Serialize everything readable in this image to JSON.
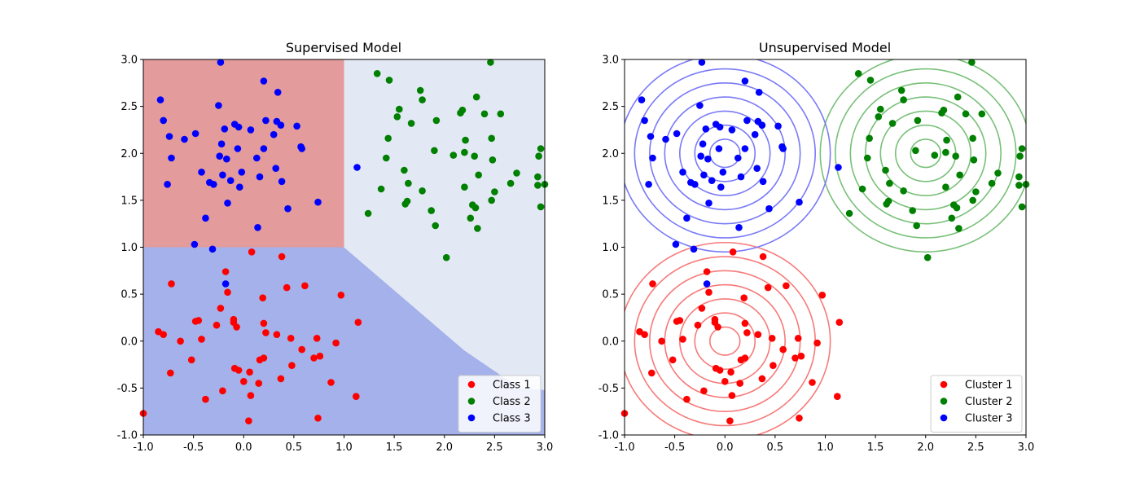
{
  "colors": {
    "red": "#ff0000",
    "green": "#008000",
    "blue": "#0000ff",
    "region_red": "#e39b9b",
    "region_blue": "#a4b1ea",
    "region_lightblue": "#e3e9f4",
    "contour_red": "#f77a7a",
    "contour_green": "#78c078",
    "contour_blue": "#7a7af7"
  },
  "chart_data": [
    {
      "type": "scatter",
      "title": "Supervised Model",
      "xlim": [
        -1.0,
        3.0
      ],
      "ylim": [
        -1.0,
        3.0
      ],
      "xticks": [
        "-1.0",
        "-0.5",
        "0.0",
        "0.5",
        "1.0",
        "1.5",
        "2.0",
        "2.5",
        "3.0"
      ],
      "yticks": [
        "-1.0",
        "-0.5",
        "0.0",
        "0.5",
        "1.0",
        "1.5",
        "2.0",
        "2.5",
        "3.0"
      ],
      "legend_position": "lower-right",
      "background": "decision-regions",
      "regions": [
        {
          "class": "Class 1",
          "color": "region_red",
          "polygon": [
            [
              -1.0,
              1.0
            ],
            [
              1.0,
              1.0
            ],
            [
              1.0,
              3.0
            ],
            [
              -1.0,
              3.0
            ]
          ]
        },
        {
          "class": "Class 3",
          "color": "region_blue",
          "polygon": [
            [
              -1.0,
              -1.0
            ],
            [
              3.0,
              -1.0
            ],
            [
              3.0,
              -0.52
            ],
            [
              2.75,
              -0.5
            ],
            [
              2.2,
              -0.1
            ],
            [
              1.0,
              1.0
            ],
            [
              -1.0,
              1.0
            ]
          ]
        },
        {
          "class": "Class 2",
          "color": "region_lightblue",
          "polygon": [
            [
              1.0,
              1.0
            ],
            [
              2.2,
              -0.1
            ],
            [
              2.75,
              -0.5
            ],
            [
              3.0,
              -0.52
            ],
            [
              3.0,
              3.0
            ],
            [
              1.0,
              3.0
            ]
          ]
        }
      ],
      "series": [
        {
          "name": "Class 1",
          "color": "red",
          "points": [
            [
              -1.0,
              -0.77
            ],
            [
              -0.85,
              0.1
            ],
            [
              -0.8,
              0.07
            ],
            [
              -0.73,
              -0.34
            ],
            [
              -0.72,
              0.61
            ],
            [
              -0.63,
              0.0
            ],
            [
              -0.52,
              -0.2
            ],
            [
              -0.48,
              0.21
            ],
            [
              -0.45,
              0.22
            ],
            [
              -0.42,
              0.02
            ],
            [
              -0.38,
              -0.62
            ],
            [
              -0.27,
              0.17
            ],
            [
              -0.23,
              0.35
            ],
            [
              -0.21,
              -0.53
            ],
            [
              -0.18,
              0.74
            ],
            [
              -0.16,
              0.52
            ],
            [
              -0.1,
              0.23
            ],
            [
              -0.1,
              0.2
            ],
            [
              -0.09,
              -0.29
            ],
            [
              -0.07,
              0.15
            ],
            [
              -0.05,
              -0.31
            ],
            [
              0.0,
              -0.43
            ],
            [
              0.05,
              -0.85
            ],
            [
              0.06,
              -0.33
            ],
            [
              0.07,
              -0.58
            ],
            [
              0.08,
              0.95
            ],
            [
              0.15,
              -0.45
            ],
            [
              0.16,
              -0.2
            ],
            [
              0.19,
              0.46
            ],
            [
              0.2,
              -0.18
            ],
            [
              0.2,
              0.19
            ],
            [
              0.22,
              0.09
            ],
            [
              0.33,
              0.07
            ],
            [
              0.37,
              -0.4
            ],
            [
              0.38,
              0.9
            ],
            [
              0.43,
              0.57
            ],
            [
              0.47,
              0.03
            ],
            [
              0.48,
              -0.26
            ],
            [
              0.58,
              -0.09
            ],
            [
              0.61,
              0.59
            ],
            [
              0.7,
              -0.18
            ],
            [
              0.73,
              0.03
            ],
            [
              0.74,
              -0.82
            ],
            [
              0.76,
              -0.16
            ],
            [
              0.87,
              -0.44
            ],
            [
              0.92,
              -0.02
            ],
            [
              0.97,
              0.49
            ],
            [
              1.12,
              -0.59
            ],
            [
              1.14,
              0.2
            ]
          ]
        },
        {
          "name": "Class 2",
          "color": "green",
          "points": [
            [
              1.24,
              1.36
            ],
            [
              1.33,
              2.85
            ],
            [
              1.37,
              1.62
            ],
            [
              1.42,
              1.95
            ],
            [
              1.44,
              2.16
            ],
            [
              1.45,
              2.78
            ],
            [
              1.53,
              2.39
            ],
            [
              1.55,
              2.47
            ],
            [
              1.6,
              1.82
            ],
            [
              1.61,
              1.46
            ],
            [
              1.63,
              1.49
            ],
            [
              1.64,
              1.68
            ],
            [
              1.67,
              2.32
            ],
            [
              1.76,
              2.67
            ],
            [
              1.78,
              2.57
            ],
            [
              1.78,
              1.6
            ],
            [
              1.87,
              1.39
            ],
            [
              1.9,
              2.03
            ],
            [
              1.91,
              1.23
            ],
            [
              1.92,
              2.35
            ],
            [
              2.02,
              0.89
            ],
            [
              2.09,
              1.98
            ],
            [
              2.16,
              2.43
            ],
            [
              2.18,
              2.46
            ],
            [
              2.2,
              2.01
            ],
            [
              2.2,
              1.64
            ],
            [
              2.21,
              2.14
            ],
            [
              2.26,
              1.31
            ],
            [
              2.28,
              1.45
            ],
            [
              2.3,
              1.97
            ],
            [
              2.31,
              1.42
            ],
            [
              2.32,
              2.6
            ],
            [
              2.33,
              1.2
            ],
            [
              2.34,
              1.77
            ],
            [
              2.4,
              2.42
            ],
            [
              2.46,
              2.97
            ],
            [
              2.47,
              1.5
            ],
            [
              2.47,
              2.16
            ],
            [
              2.48,
              1.93
            ],
            [
              2.5,
              1.59
            ],
            [
              2.56,
              2.42
            ],
            [
              2.66,
              1.68
            ],
            [
              2.72,
              1.79
            ],
            [
              2.93,
              1.75
            ],
            [
              2.93,
              1.66
            ],
            [
              2.94,
              1.97
            ],
            [
              2.96,
              2.05
            ],
            [
              2.96,
              1.43
            ],
            [
              3.0,
              1.67
            ]
          ]
        },
        {
          "name": "Class 3",
          "color": "blue",
          "points": [
            [
              -0.83,
              2.57
            ],
            [
              -0.8,
              2.35
            ],
            [
              -0.76,
              1.67
            ],
            [
              -0.74,
              2.18
            ],
            [
              -0.72,
              1.95
            ],
            [
              -0.59,
              2.15
            ],
            [
              -0.49,
              1.03
            ],
            [
              -0.48,
              2.21
            ],
            [
              -0.42,
              1.8
            ],
            [
              -0.38,
              1.31
            ],
            [
              -0.34,
              1.69
            ],
            [
              -0.31,
              0.98
            ],
            [
              -0.3,
              1.67
            ],
            [
              -0.25,
              2.51
            ],
            [
              -0.24,
              1.97
            ],
            [
              -0.23,
              2.97
            ],
            [
              -0.22,
              2.1
            ],
            [
              -0.21,
              1.77
            ],
            [
              -0.19,
              2.26
            ],
            [
              -0.18,
              0.61
            ],
            [
              -0.17,
              1.94
            ],
            [
              -0.16,
              1.47
            ],
            [
              -0.13,
              1.71
            ],
            [
              -0.09,
              2.31
            ],
            [
              -0.06,
              2.05
            ],
            [
              -0.05,
              2.28
            ],
            [
              -0.04,
              1.64
            ],
            [
              -0.02,
              1.8
            ],
            [
              0.07,
              2.25
            ],
            [
              0.13,
              1.95
            ],
            [
              0.14,
              1.21
            ],
            [
              0.16,
              1.75
            ],
            [
              0.2,
              2.05
            ],
            [
              0.2,
              2.77
            ],
            [
              0.22,
              2.35
            ],
            [
              0.3,
              2.2
            ],
            [
              0.32,
              1.84
            ],
            [
              0.33,
              2.34
            ],
            [
              0.34,
              2.65
            ],
            [
              0.37,
              2.3
            ],
            [
              0.38,
              1.7
            ],
            [
              0.44,
              1.41
            ],
            [
              0.53,
              2.29
            ],
            [
              0.57,
              2.07
            ],
            [
              0.58,
              2.05
            ],
            [
              0.74,
              1.48
            ],
            [
              1.13,
              1.85
            ]
          ]
        }
      ]
    },
    {
      "type": "scatter",
      "title": "Unsupervised Model",
      "xlim": [
        -1.0,
        3.0
      ],
      "ylim": [
        -1.0,
        3.0
      ],
      "xticks": [
        "-1.0",
        "-0.5",
        "0.0",
        "0.5",
        "1.0",
        "1.5",
        "2.0",
        "2.5",
        "3.0"
      ],
      "yticks": [
        "-1.0",
        "-0.5",
        "0.0",
        "0.5",
        "1.0",
        "1.5",
        "2.0",
        "2.5",
        "3.0"
      ],
      "legend_position": "lower-right",
      "background": "gaussian-contours",
      "contours": [
        {
          "cluster": "Cluster 1",
          "color": "contour_red",
          "center": [
            0.0,
            0.0
          ],
          "radii": [
            0.15,
            0.3,
            0.45,
            0.6,
            0.75,
            0.9,
            1.05
          ]
        },
        {
          "cluster": "Cluster 2",
          "color": "contour_green",
          "center": [
            2.0,
            2.0
          ],
          "radii": [
            0.15,
            0.3,
            0.45,
            0.6,
            0.75,
            0.9,
            1.05
          ]
        },
        {
          "cluster": "Cluster 3",
          "color": "contour_blue",
          "center": [
            0.0,
            2.0
          ],
          "radii": [
            0.15,
            0.3,
            0.45,
            0.6,
            0.75,
            0.9,
            1.05
          ]
        }
      ],
      "series": [
        {
          "name": "Cluster 1",
          "color": "red",
          "same_points_as": 0
        },
        {
          "name": "Cluster 2",
          "color": "green",
          "same_points_as": 1
        },
        {
          "name": "Cluster 3",
          "color": "blue",
          "same_points_as": 2
        }
      ]
    }
  ]
}
